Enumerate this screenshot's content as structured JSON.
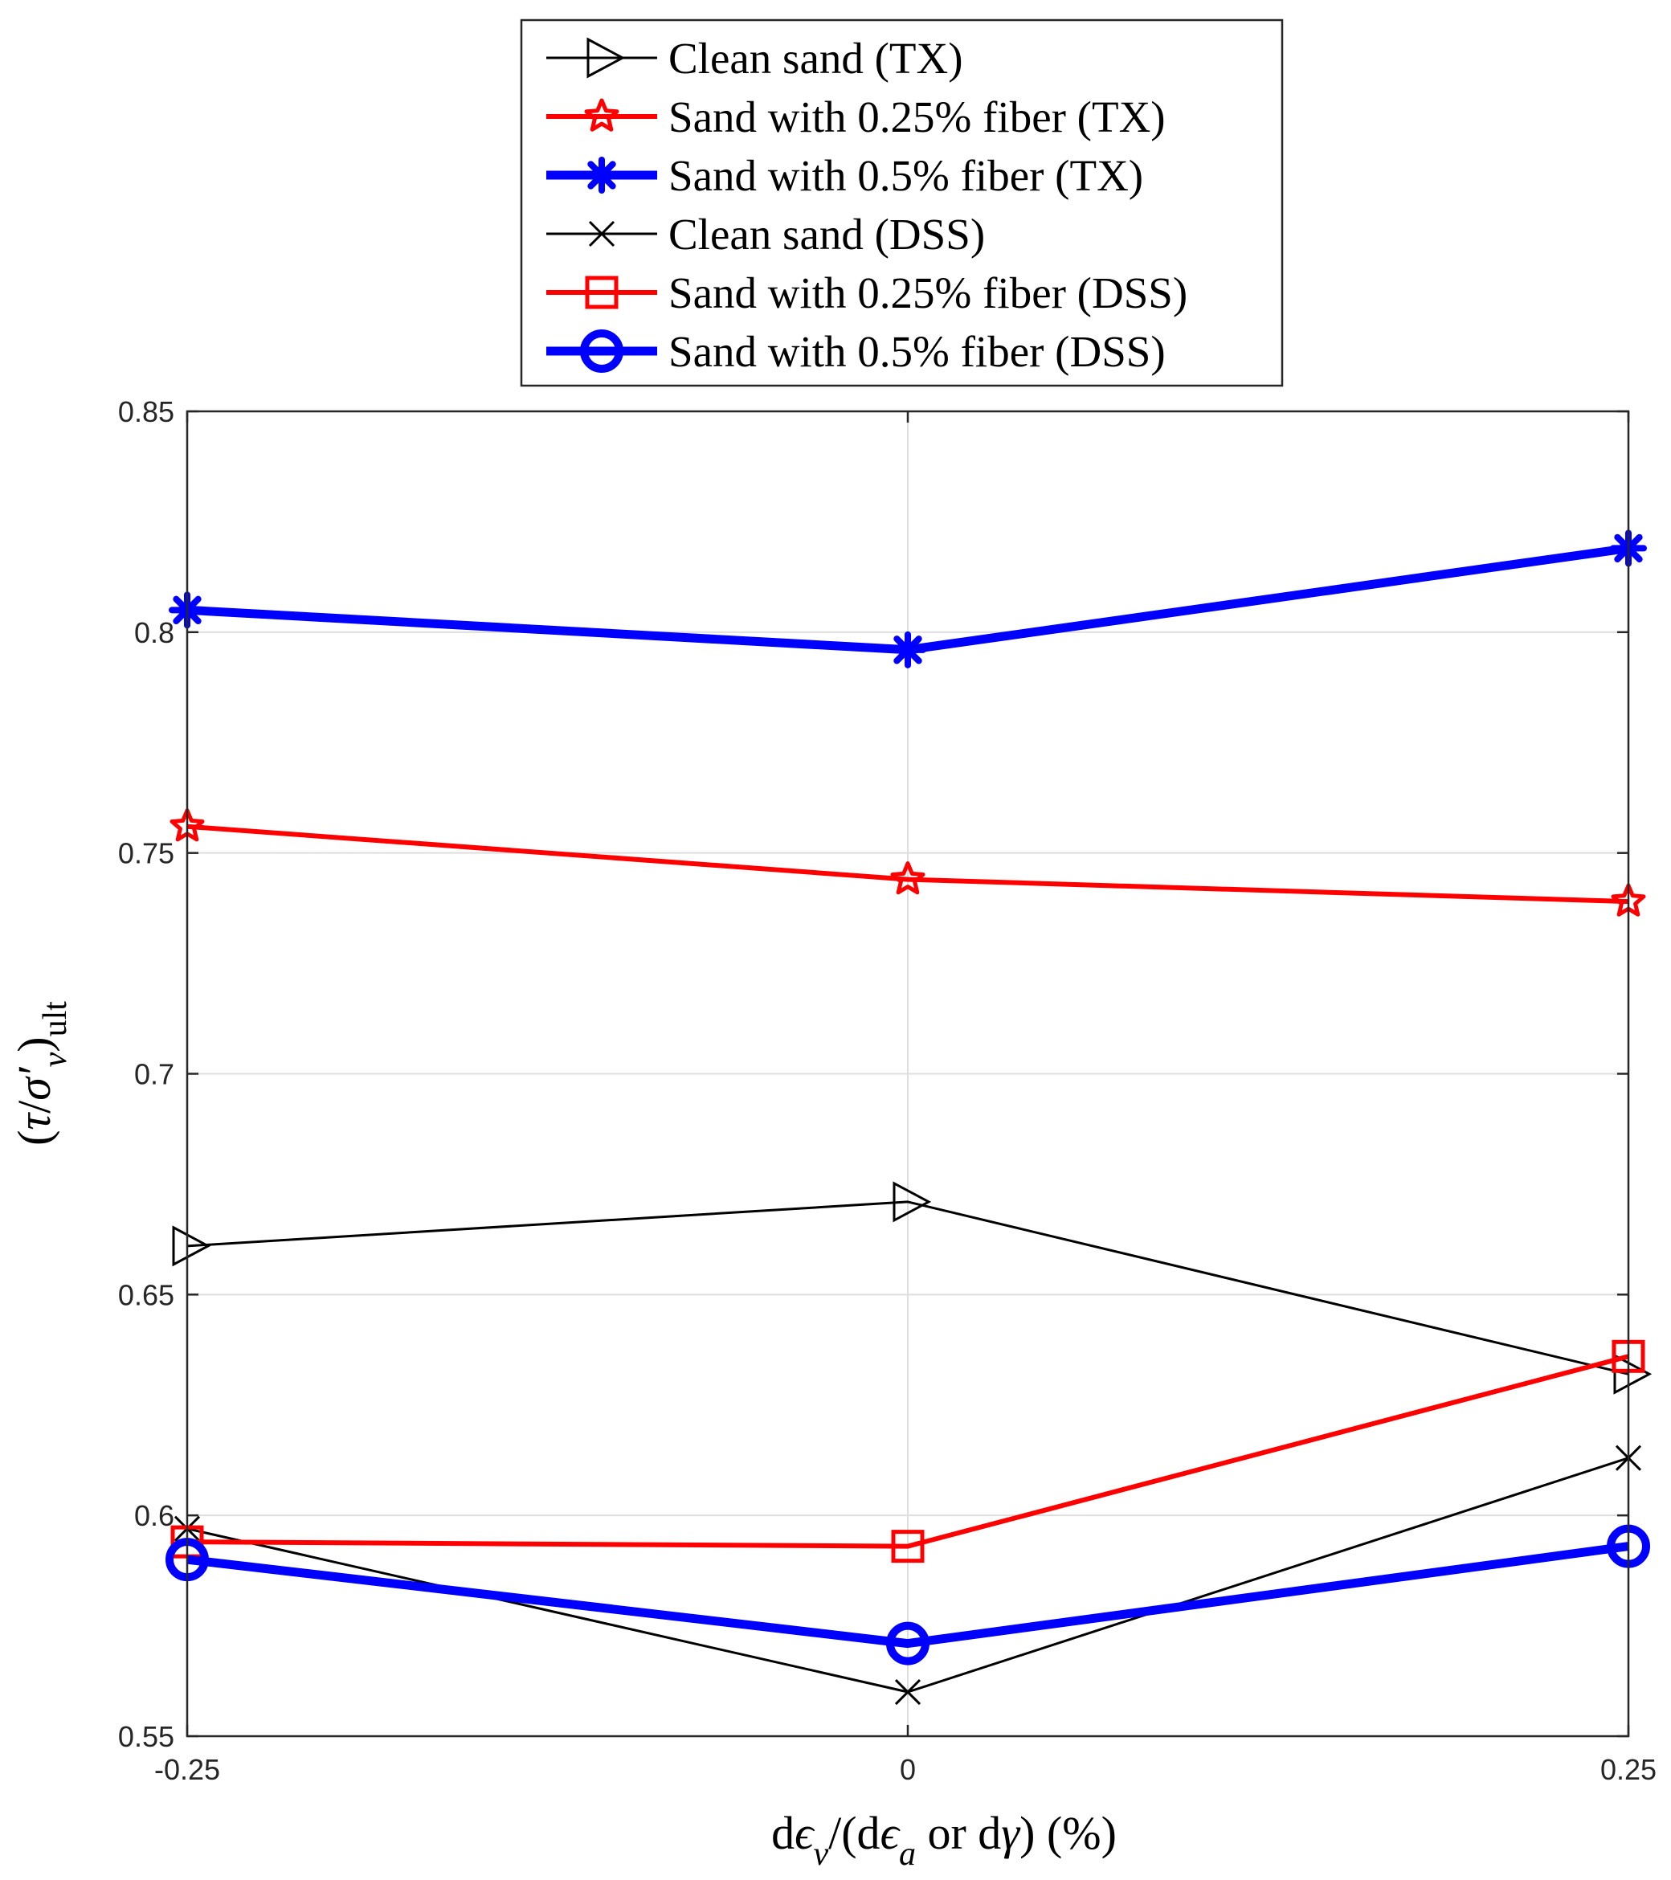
{
  "chart_data": {
    "type": "line",
    "title": "",
    "xlabel": "dε_v/(dε_a or dγ)  (%)",
    "ylabel": "(τ/σ′_v)_ult",
    "xlabel_parts": {
      "d": "d",
      "eps": "ϵ",
      "sub_v": "v",
      "mid": "/(d",
      "sub_a": "a",
      "tail": " or d",
      "gamma": "γ",
      "end": ")  (%)"
    },
    "ylabel_parts": {
      "open": "(",
      "tau": "τ",
      "slash": "/",
      "sigma": "σ′",
      "sub_v": "v",
      "close": ")",
      "sub": "ult"
    },
    "x": [
      -0.25,
      0,
      0.25
    ],
    "xlim": [
      -0.25,
      0.25
    ],
    "ylim": [
      0.55,
      0.85
    ],
    "xticks": [
      "-0.25",
      "0",
      "0.25"
    ],
    "yticks": [
      "0.55",
      "0.6",
      "0.65",
      "0.7",
      "0.75",
      "0.8",
      "0.85"
    ],
    "grid": true,
    "legend_position": "top-center, outside",
    "series": [
      {
        "name": "Clean sand (TX)",
        "color": "#000000",
        "marker": "triangle-right",
        "width": "thin",
        "values": [
          0.661,
          0.671,
          0.632
        ]
      },
      {
        "name": "Sand with 0.25% fiber (TX)",
        "color": "#ff0000",
        "marker": "star",
        "width": "medium",
        "values": [
          0.756,
          0.744,
          0.739
        ]
      },
      {
        "name": "Sand with 0.5% fiber (TX)",
        "color": "#0000ff",
        "marker": "asterisk",
        "width": "thick",
        "values": [
          0.805,
          0.796,
          0.819
        ]
      },
      {
        "name": "Clean sand (DSS)",
        "color": "#000000",
        "marker": "x",
        "width": "thin",
        "values": [
          0.597,
          0.56,
          0.613
        ]
      },
      {
        "name": "Sand with 0.25% fiber (DSS)",
        "color": "#ff0000",
        "marker": "square",
        "width": "medium",
        "values": [
          0.594,
          0.593,
          0.636
        ]
      },
      {
        "name": "Sand with 0.5% fiber (DSS)",
        "color": "#0000ff",
        "marker": "circle",
        "width": "thick",
        "values": [
          0.59,
          0.571,
          0.593
        ]
      }
    ]
  }
}
